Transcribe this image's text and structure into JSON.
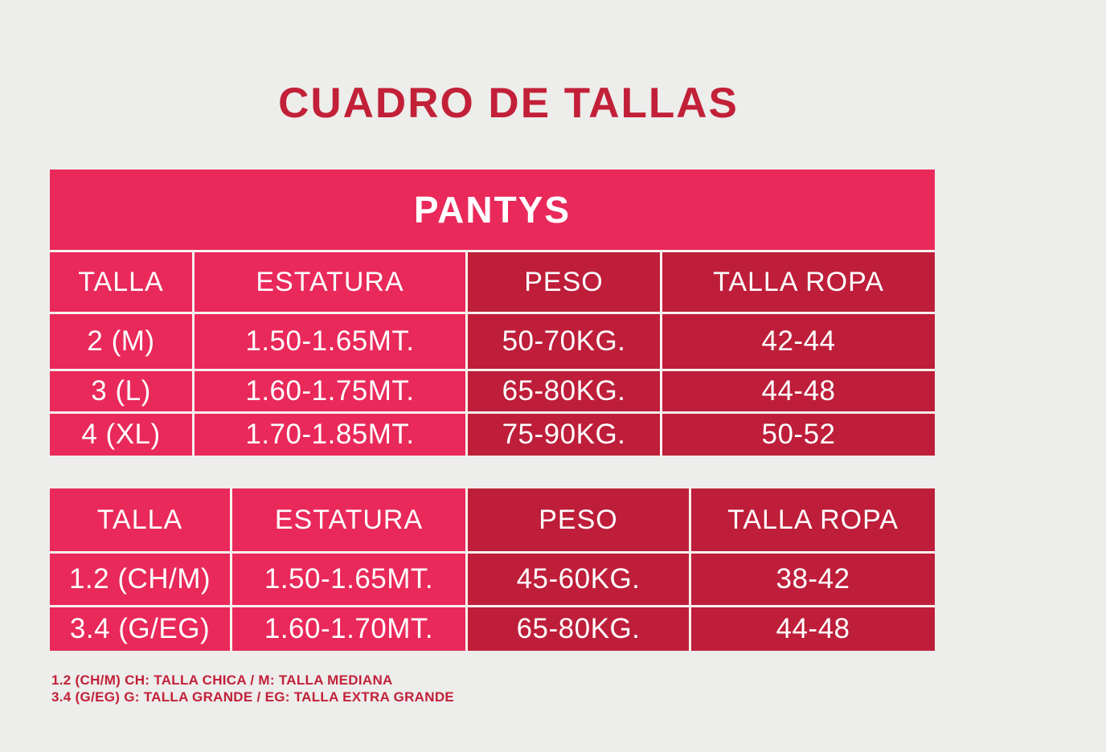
{
  "page": {
    "title": "CUADRO DE TALLAS"
  },
  "colors": {
    "background": "#EDEDEB",
    "pink": "#E9295A",
    "dark_red": "#BE1E3A",
    "title_red": "#C22038",
    "divider": "#F7F2EE",
    "cell_text": "#FFFFFF"
  },
  "chart_data": [
    {
      "type": "table",
      "title": "PANTYS",
      "columns": [
        "TALLA",
        "ESTATURA",
        "PESO",
        "TALLA ROPA"
      ],
      "rows": [
        [
          "2 (M)",
          "1.50-1.65MT.",
          "50-70KG.",
          "42-44"
        ],
        [
          "3 (L)",
          "1.60-1.75MT.",
          "65-80KG.",
          "44-48"
        ],
        [
          "4 (XL)",
          "1.70-1.85MT.",
          "75-90KG.",
          "50-52"
        ]
      ]
    },
    {
      "type": "table",
      "title": "",
      "columns": [
        "TALLA",
        "ESTATURA",
        "PESO",
        "TALLA ROPA"
      ],
      "rows": [
        [
          "1.2 (CH/M)",
          "1.50-1.65MT.",
          "45-60KG.",
          "38-42"
        ],
        [
          "3.4 (G/EG)",
          "1.60-1.70MT.",
          "65-80KG.",
          "44-48"
        ]
      ]
    }
  ],
  "footnotes": {
    "line1": "1.2 (CH/M) CH: TALLA CHICA / M: TALLA MEDIANA",
    "line2": "3.4 (G/EG) G: TALLA GRANDE / EG: TALLA EXTRA GRANDE"
  }
}
